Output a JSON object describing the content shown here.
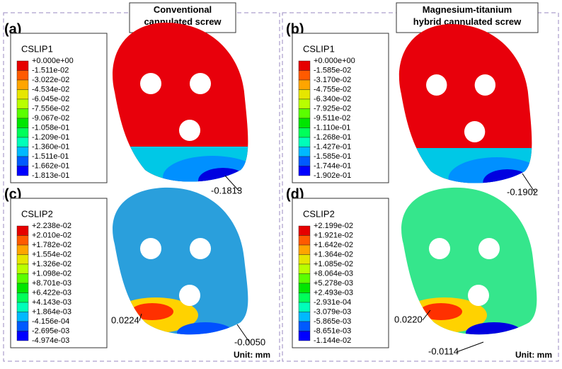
{
  "headers": [
    "Conventional\ncannulated screw",
    "Magnesium-titanium\nhybrid cannulated screw"
  ],
  "panels": [
    {
      "label": "(a)",
      "legend_title": "CSLIP1",
      "legend_labels": [
        "+0.000e+00",
        "-1.511e-02",
        "-3.022e-02",
        "-4.534e-02",
        "-6.045e-02",
        "-7.556e-02",
        "-9.067e-02",
        "-1.058e-01",
        "-1.209e-01",
        "-1.360e-01",
        "-1.511e-01",
        "-1.662e-01",
        "-1.813e-01"
      ],
      "annotations": [
        "-0.1813"
      ]
    },
    {
      "label": "(b)",
      "legend_title": "CSLIP1",
      "legend_labels": [
        "+0.000e+00",
        "-1.585e-02",
        "-3.170e-02",
        "-4.755e-02",
        "-6.340e-02",
        "-7.925e-02",
        "-9.511e-02",
        "-1.110e-01",
        "-1.268e-01",
        "-1.427e-01",
        "-1.585e-01",
        "-1.744e-01",
        "-1.902e-01"
      ],
      "annotations": [
        "-0.1902"
      ]
    },
    {
      "label": "(c)",
      "legend_title": "CSLIP2",
      "legend_labels": [
        "+2.238e-02",
        "+2.010e-02",
        "+1.782e-02",
        "+1.554e-02",
        "+1.326e-02",
        "+1.098e-02",
        "+8.701e-03",
        "+6.422e-03",
        "+4.143e-03",
        "+1.864e-03",
        "-4.156e-04",
        "-2.695e-03",
        "-4.974e-03"
      ],
      "annotations": [
        "0.0224",
        "-0.0050"
      ],
      "unit": "Unit: mm"
    },
    {
      "label": "(d)",
      "legend_title": "CSLIP2",
      "legend_labels": [
        "+2.199e-02",
        "+1.921e-02",
        "+1.642e-02",
        "+1.364e-02",
        "+1.085e-02",
        "+8.064e-03",
        "+5.278e-03",
        "+2.493e-03",
        "-2.931e-04",
        "-3.079e-03",
        "-5.865e-03",
        "-8.651e-03",
        "-1.144e-02"
      ],
      "annotations": [
        "0.0220",
        "-0.0114"
      ],
      "unit": "Unit: mm"
    }
  ]
}
